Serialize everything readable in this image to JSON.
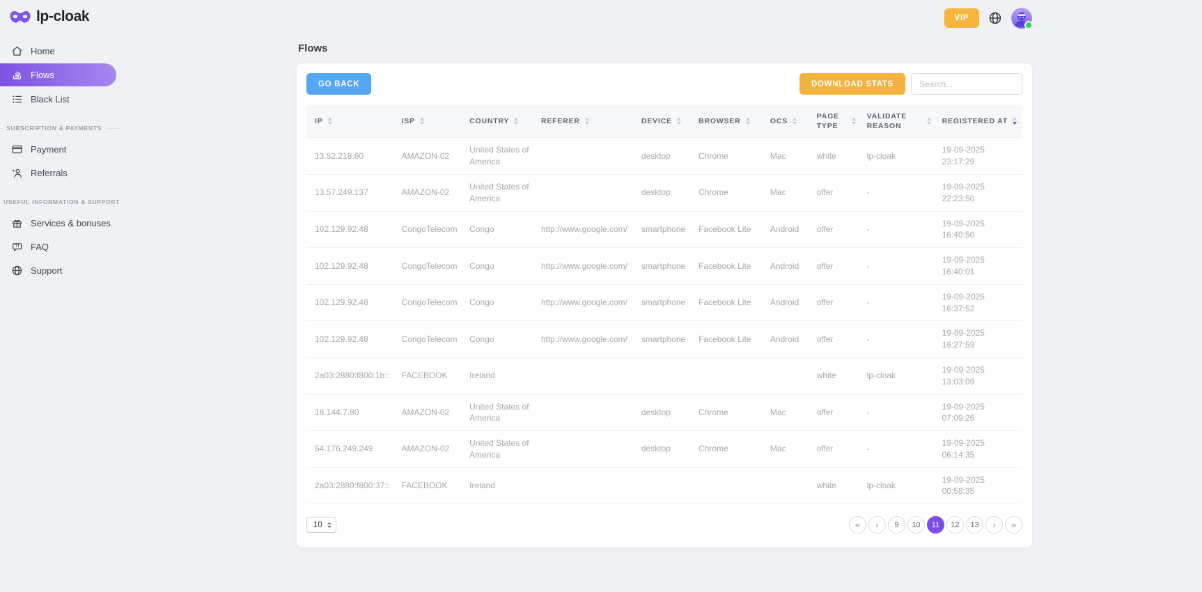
{
  "brand": {
    "name": "lp-cloak",
    "logo_icon": "mask-icon"
  },
  "topbar": {
    "vip_label": "VIP",
    "globe_icon": "globe-icon",
    "avatar": "user-avatar",
    "status": "online"
  },
  "sidebar": {
    "sections": [
      {
        "label": "",
        "items": [
          {
            "label": "Home",
            "icon": "home-icon",
            "active": false
          },
          {
            "label": "Flows",
            "icon": "flows-icon",
            "active": true
          },
          {
            "label": "Black List",
            "icon": "black-list-icon",
            "active": false
          }
        ]
      },
      {
        "label": "SUBSCRIPTION & PAYMENTS",
        "items": [
          {
            "label": "Payment",
            "icon": "credit-card-icon",
            "active": false
          },
          {
            "label": "Referrals",
            "icon": "referrals-icon",
            "active": false
          }
        ]
      },
      {
        "label": "USEFUL INFORMATION & SUPPORT",
        "items": [
          {
            "label": "Services & bonuses",
            "icon": "gift-icon",
            "active": false
          },
          {
            "label": "FAQ",
            "icon": "faq-icon",
            "active": false
          },
          {
            "label": "Support",
            "icon": "support-icon",
            "active": false
          }
        ]
      }
    ]
  },
  "page": {
    "title": "Flows"
  },
  "toolbar": {
    "go_back": "GO BACK",
    "download_stats": "DOWNLOAD STATS",
    "search_placeholder": "Search..."
  },
  "table": {
    "columns": [
      {
        "key": "ip",
        "label": "IP",
        "sort": "none"
      },
      {
        "key": "isp",
        "label": "ISP",
        "sort": "none"
      },
      {
        "key": "country",
        "label": "COUNTRY",
        "sort": "none"
      },
      {
        "key": "referer",
        "label": "REFERER",
        "sort": "none"
      },
      {
        "key": "device",
        "label": "DEVICE",
        "sort": "none"
      },
      {
        "key": "browser",
        "label": "BROWSER",
        "sort": "none"
      },
      {
        "key": "ocs",
        "label": "OCS",
        "sort": "none"
      },
      {
        "key": "page_type",
        "label": "PAGE TYPE",
        "sort": "none"
      },
      {
        "key": "validate_reason",
        "label": "VALIDATE REASON",
        "sort": "none"
      },
      {
        "key": "registered_at",
        "label": "REGISTERED AT",
        "sort": "desc"
      }
    ],
    "rows": [
      {
        "ip": "13.52.218.60",
        "isp": "AMAZON-02",
        "country": "United States of America",
        "referer": "",
        "device": "desktop",
        "browser": "Chrome",
        "ocs": "Mac",
        "page_type": "white",
        "validate_reason": "lp-cloak",
        "registered_at": "19-09-2025 23:17:29"
      },
      {
        "ip": "13.57.249.137",
        "isp": "AMAZON-02",
        "country": "United States of America",
        "referer": "",
        "device": "desktop",
        "browser": "Chrome",
        "ocs": "Mac",
        "page_type": "offer",
        "validate_reason": "-",
        "registered_at": "19-09-2025 22:23:50"
      },
      {
        "ip": "102.129.92.48",
        "isp": "CongoTelecom",
        "country": "Congo",
        "referer": "http://www.google.com/",
        "device": "smartphone",
        "browser": "Facebook Lite",
        "ocs": "Android",
        "page_type": "offer",
        "validate_reason": "-",
        "registered_at": "19-09-2025 16:40:50"
      },
      {
        "ip": "102.129.92.48",
        "isp": "CongoTelecom",
        "country": "Congo",
        "referer": "http://www.google.com/",
        "device": "smartphone",
        "browser": "Facebook Lite",
        "ocs": "Android",
        "page_type": "offer",
        "validate_reason": "-",
        "registered_at": "19-09-2025 16:40:01"
      },
      {
        "ip": "102.129.92.48",
        "isp": "CongoTelecom",
        "country": "Congo",
        "referer": "http://www.google.com/",
        "device": "smartphone",
        "browser": "Facebook Lite",
        "ocs": "Android",
        "page_type": "offer",
        "validate_reason": "-",
        "registered_at": "19-09-2025 16:37:52"
      },
      {
        "ip": "102.129.92.48",
        "isp": "CongoTelecom",
        "country": "Congo",
        "referer": "http://www.google.com/",
        "device": "smartphone",
        "browser": "Facebook Lite",
        "ocs": "Android",
        "page_type": "offer",
        "validate_reason": "-",
        "registered_at": "19-09-2025 16:27:59"
      },
      {
        "ip": "2a03:2880:f800:1b::",
        "isp": "FACEBOOK",
        "country": "Ireland",
        "referer": "",
        "device": "",
        "browser": "",
        "ocs": "",
        "page_type": "white",
        "validate_reason": "lp-cloak",
        "registered_at": "19-09-2025 13:03:09"
      },
      {
        "ip": "18.144.7.80",
        "isp": "AMAZON-02",
        "country": "United States of America",
        "referer": "",
        "device": "desktop",
        "browser": "Chrome",
        "ocs": "Mac",
        "page_type": "offer",
        "validate_reason": "-",
        "registered_at": "19-09-2025 07:09:26"
      },
      {
        "ip": "54.176.249.249",
        "isp": "AMAZON-02",
        "country": "United States of America",
        "referer": "",
        "device": "desktop",
        "browser": "Chrome",
        "ocs": "Mac",
        "page_type": "offer",
        "validate_reason": "-",
        "registered_at": "19-09-2025 06:14:35"
      },
      {
        "ip": "2a03:2880:f800:37::",
        "isp": "FACEBOOK",
        "country": "Ireland",
        "referer": "",
        "device": "",
        "browser": "",
        "ocs": "",
        "page_type": "white",
        "validate_reason": "lp-cloak",
        "registered_at": "19-09-2025 00:58:35"
      }
    ]
  },
  "pagination": {
    "page_size": "10",
    "buttons": [
      {
        "label": "«",
        "name": "first-page-button",
        "kind": "nav",
        "active": false
      },
      {
        "label": "‹",
        "name": "prev-page-button",
        "kind": "nav",
        "active": false
      },
      {
        "label": "9",
        "name": "page-button-9",
        "kind": "page",
        "active": false
      },
      {
        "label": "10",
        "name": "page-button-10",
        "kind": "page",
        "active": false
      },
      {
        "label": "11",
        "name": "page-button-11",
        "kind": "page",
        "active": true
      },
      {
        "label": "12",
        "name": "page-button-12",
        "kind": "page",
        "active": false
      },
      {
        "label": "13",
        "name": "page-button-13",
        "kind": "page",
        "active": false
      },
      {
        "label": "›",
        "name": "next-page-button",
        "kind": "nav",
        "active": false
      },
      {
        "label": "»",
        "name": "last-page-button",
        "kind": "nav",
        "active": false
      }
    ]
  },
  "colors": {
    "accent_purple": "#7c4de4",
    "nav_gradient_start": "#7e52e2",
    "nav_gradient_end": "#a687f0",
    "blue_button": "#55a6f3",
    "orange_button": "#f3b340",
    "online_green": "#3ecf4a",
    "page_background": "#eff1f5"
  }
}
